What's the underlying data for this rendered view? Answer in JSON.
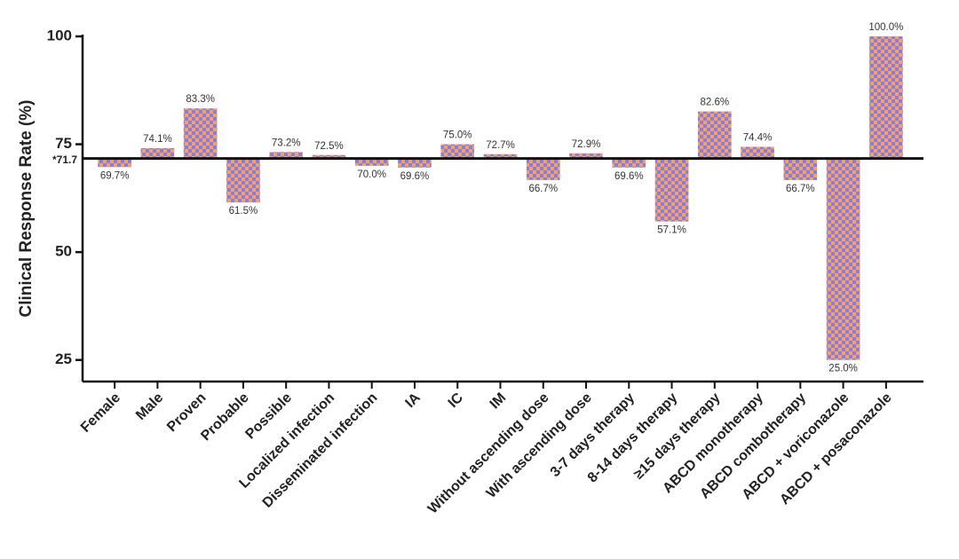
{
  "chart_data": {
    "type": "bar",
    "y_label": "Clinical Response Rate (%)",
    "categories": [
      "Female",
      "Male",
      "Proven",
      "Probable",
      "Possible",
      "Localized infection",
      "Disseminated infection",
      "IA",
      "IC",
      "IM",
      "Without ascending dose",
      "With ascending dose",
      "3-7 days therapy",
      "8-14 days therapy",
      "≥15 days therapy",
      "ABCD monotherapy",
      "ABCD combotherapy",
      "ABCD + voriconazole",
      "ABCD + posaconazole"
    ],
    "values": [
      69.7,
      74.1,
      83.3,
      61.5,
      73.2,
      72.5,
      70.0,
      69.6,
      75.0,
      72.7,
      66.7,
      72.9,
      69.6,
      57.1,
      82.6,
      74.4,
      66.7,
      25.0,
      100.0
    ],
    "value_labels": [
      "69.7%",
      "74.1%",
      "83.3%",
      "61.5%",
      "73.2%",
      "72.5%",
      "70.0%",
      "69.6%",
      "75.0%",
      "72.7%",
      "66.7%",
      "72.9%",
      "69.6%",
      "57.1%",
      "82.6%",
      "74.4%",
      "66.7%",
      "25.0%",
      "100.0%"
    ],
    "color": "#8a7ed8",
    "pattern_color": "#f3a06c",
    "ylim": [
      20,
      100
    ],
    "yticks": [
      25,
      50,
      75,
      100,
      {
        "value": 71.7,
        "label": "*71.7"
      }
    ]
  }
}
